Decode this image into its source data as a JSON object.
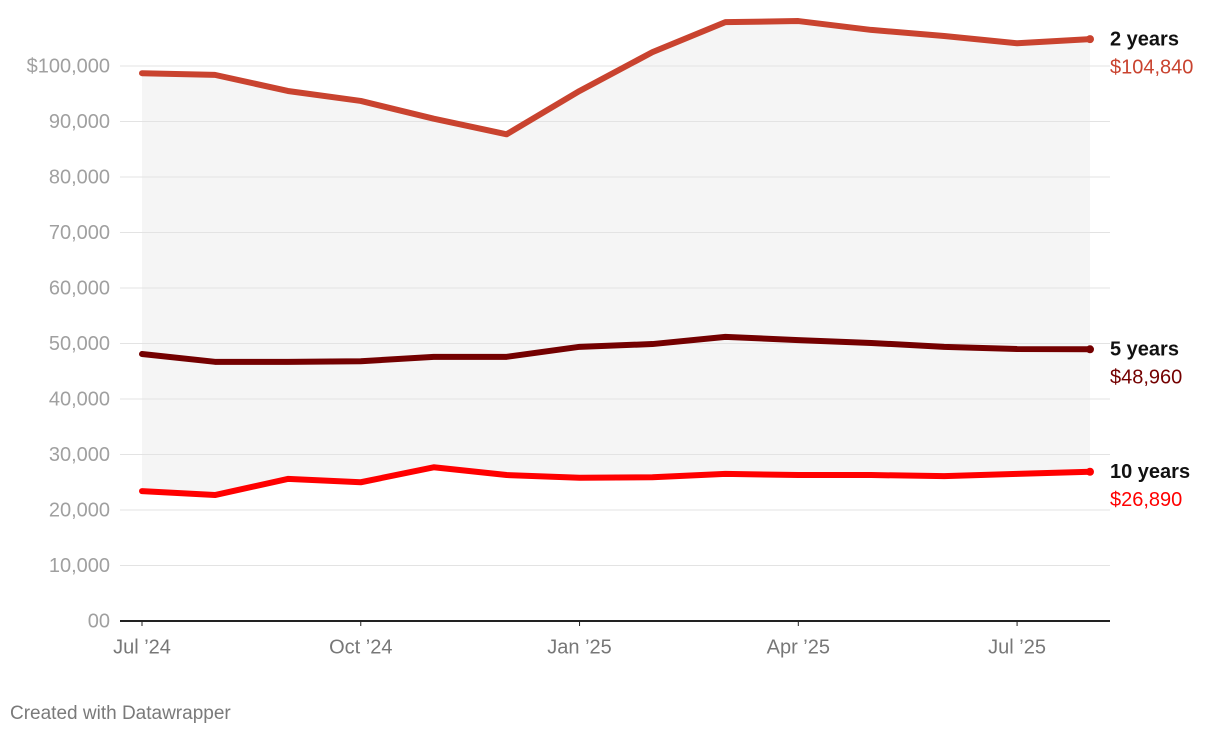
{
  "chart_data": {
    "type": "line",
    "categories": [
      "Jul ’24",
      null,
      null,
      "Oct ’24",
      null,
      null,
      "Jan ’25",
      null,
      null,
      "Apr ’25",
      null,
      null,
      "Jul ’25",
      null
    ],
    "series": [
      {
        "name": "2 years",
        "color": "#c9432f",
        "values": [
          98700,
          98400,
          95500,
          93700,
          90500,
          87700,
          95500,
          102500,
          107900,
          108100,
          106500,
          105400,
          104100,
          104840
        ],
        "value_labels": [
          null,
          null,
          null,
          null,
          null,
          null,
          null,
          null,
          null,
          null,
          null,
          null,
          null,
          "$104,840"
        ]
      },
      {
        "name": "5 years",
        "color": "#740000",
        "values": [
          48100,
          46700,
          46700,
          46800,
          47600,
          47600,
          49400,
          49900,
          51200,
          50600,
          50100,
          49400,
          49000,
          48960
        ],
        "value_labels": [
          null,
          null,
          null,
          null,
          null,
          null,
          null,
          null,
          null,
          null,
          null,
          null,
          null,
          "$48,960"
        ]
      },
      {
        "name": "10 years",
        "color": "#ff0000",
        "values": [
          23400,
          22700,
          25600,
          25000,
          27700,
          26300,
          25800,
          25900,
          26500,
          26300,
          26300,
          26100,
          26500,
          26890
        ],
        "value_labels": [
          null,
          null,
          null,
          null,
          null,
          null,
          null,
          null,
          null,
          null,
          null,
          null,
          null,
          "$26,890"
        ]
      }
    ],
    "ylim": [
      0,
      110000
    ],
    "yticks": [
      {
        "value": 0,
        "label": "00"
      },
      {
        "value": 10000,
        "label": "10,000"
      },
      {
        "value": 20000,
        "label": "20,000"
      },
      {
        "value": 30000,
        "label": "30,000"
      },
      {
        "value": 40000,
        "label": "40,000"
      },
      {
        "value": 50000,
        "label": "50,000"
      },
      {
        "value": 60000,
        "label": "60,000"
      },
      {
        "value": 70000,
        "label": "70,000"
      },
      {
        "value": 80000,
        "label": "80,000"
      },
      {
        "value": 90000,
        "label": "90,000"
      },
      {
        "value": 100000,
        "label": "$100,000"
      }
    ],
    "grid": true,
    "range_fill": "#f5f5f5",
    "footer": "Created with Datawrapper"
  }
}
